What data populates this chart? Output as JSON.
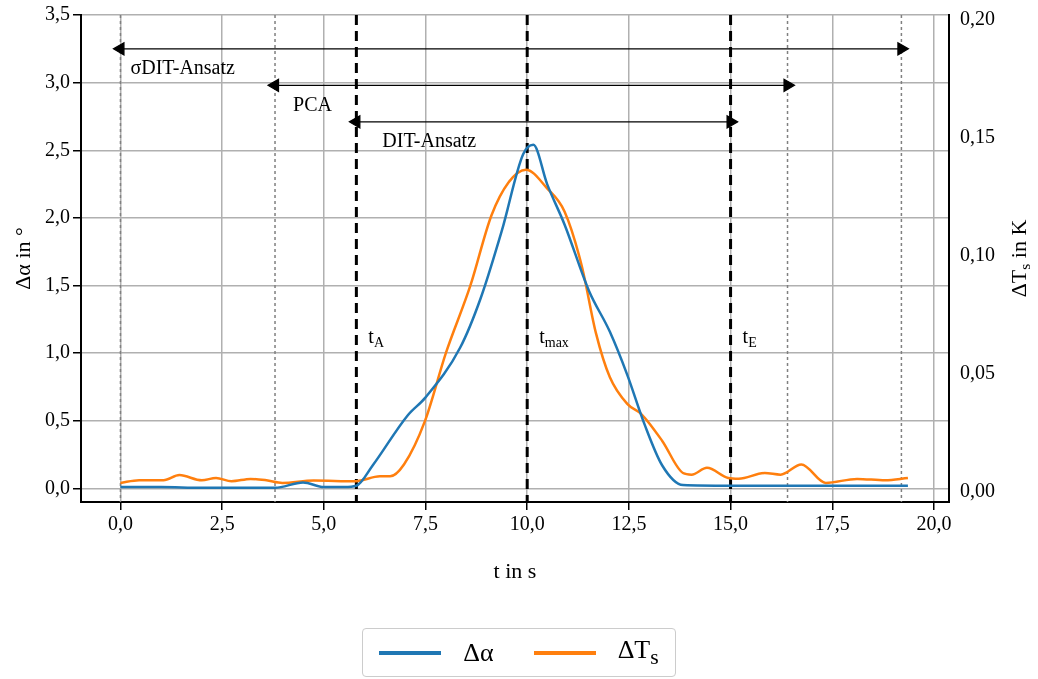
{
  "chart_data": {
    "type": "line",
    "xlabel": "t in s",
    "ylabel": "Δα in °",
    "y2label": "ΔT$_{s}$ in K",
    "xlim": [
      -0.97,
      20.37
    ],
    "ylim": [
      -0.1,
      3.5
    ],
    "y2lim": [
      -0.0045,
      0.202
    ],
    "xticks": [
      {
        "value": 0,
        "label": "0,0"
      },
      {
        "value": 2.5,
        "label": "2,5"
      },
      {
        "value": 5,
        "label": "5,0"
      },
      {
        "value": 7.5,
        "label": "7,5"
      },
      {
        "value": 10,
        "label": "10,0"
      },
      {
        "value": 12.5,
        "label": "12,5"
      },
      {
        "value": 15,
        "label": "15,0"
      },
      {
        "value": 17.5,
        "label": "17,5"
      },
      {
        "value": 20,
        "label": "20,0"
      }
    ],
    "yticks": [
      {
        "value": 0,
        "label": "0,0"
      },
      {
        "value": 0.5,
        "label": "0,5"
      },
      {
        "value": 1,
        "label": "1,0"
      },
      {
        "value": 1.5,
        "label": "1,5"
      },
      {
        "value": 2,
        "label": "2,0"
      },
      {
        "value": 2.5,
        "label": "2,5"
      },
      {
        "value": 3,
        "label": "3,0"
      },
      {
        "value": 3.5,
        "label": "3,5"
      }
    ],
    "y2ticks": [
      {
        "value": 0,
        "label": "0,00"
      },
      {
        "value": 0.05,
        "label": "0,05"
      },
      {
        "value": 0.1,
        "label": "0,10"
      },
      {
        "value": 0.15,
        "label": "0,15"
      },
      {
        "value": 0.2,
        "label": "0,20"
      }
    ],
    "grid": true,
    "legend": "bottom",
    "marker": "none",
    "line_style": "solid",
    "series": [
      {
        "name": "Δα",
        "color": "#1f77b4",
        "x": [
          0,
          1,
          2,
          3,
          3.8,
          4.49,
          5,
          5.5,
          5.8,
          6.2,
          7.06,
          7.49,
          8.35,
          8.86,
          9.38,
          9.9,
          10.15,
          10.49,
          10.92,
          11.52,
          12.03,
          12.46,
          12.89,
          13.32,
          13.83,
          15,
          16,
          17,
          18,
          19.36
        ],
        "values": [
          0.01,
          0.01,
          0.005,
          0.005,
          0.005,
          0.045,
          0.01,
          0.01,
          0.02,
          0.17,
          0.54,
          0.67,
          1.04,
          1.41,
          1.91,
          2.47,
          2.54,
          2.25,
          1.95,
          1.46,
          1.16,
          0.84,
          0.47,
          0.17,
          0.025,
          0.02,
          0.02,
          0.02,
          0.02,
          0.02
        ]
      },
      {
        "name": "ΔT$_{s}$",
        "color": "#ff7f0e",
        "axis": "y2",
        "x": [
          0,
          0.46,
          1.06,
          1.45,
          2,
          2.35,
          2.73,
          3.2,
          3.59,
          3.98,
          4.75,
          5.78,
          6.38,
          6.63,
          6.97,
          7.49,
          8,
          8.6,
          9.12,
          9.54,
          9.97,
          10.49,
          10.92,
          11.34,
          11.69,
          12.03,
          12.46,
          12.8,
          13.32,
          13.83,
          14.04,
          14.42,
          14.94,
          15.2,
          15.84,
          16.23,
          16.74,
          17.34,
          18.11,
          18.8,
          19.36
        ],
        "values": [
          0.0036,
          0.0047,
          0.0047,
          0.0069,
          0.0047,
          0.0057,
          0.0043,
          0.0053,
          0.0047,
          0.0036,
          0.0046,
          0.0043,
          0.0064,
          0.0064,
          0.0114,
          0.03,
          0.0586,
          0.0871,
          0.117,
          0.131,
          0.1364,
          0.1285,
          0.1186,
          0.0957,
          0.0671,
          0.0485,
          0.0371,
          0.0329,
          0.0214,
          0.0078,
          0.0071,
          0.01,
          0.0057,
          0.0054,
          0.0078,
          0.0071,
          0.0114,
          0.0036,
          0.0053,
          0.0047,
          0.0057
        ]
      },
      {
        "type": "line",
        "color": "#000000",
        "marker": "triangle",
        "x": [
          0,
          19.2
        ],
        "values": [
          3.25,
          3.25
        ]
      },
      {
        "type": "line",
        "color": "#000000",
        "marker": "triangle",
        "x": [
          3.8,
          16.4
        ],
        "values": [
          2.98,
          2.98
        ]
      },
      {
        "type": "line",
        "color": "#000000",
        "marker": "triangle",
        "x": [
          5.8,
          15
        ],
        "values": [
          2.71,
          2.71
        ]
      }
    ],
    "ref_lines": [
      {
        "axis": "x",
        "value": 0,
        "color": "#808080",
        "line_style": "dotted"
      },
      {
        "axis": "x",
        "value": 3.8,
        "color": "#808080",
        "line_style": "dotted"
      },
      {
        "axis": "x",
        "value": 5.8,
        "label": "t$_{A}$",
        "color": "#000000",
        "line_style": "dashed"
      },
      {
        "axis": "x",
        "value": 10,
        "label": "t$_{max}$",
        "color": "#000000",
        "line_style": "dashed"
      },
      {
        "axis": "x",
        "value": 15,
        "label": "t$_{E}$",
        "color": "#000000",
        "line_style": "dashed"
      },
      {
        "axis": "x",
        "value": 16.4,
        "color": "#808080",
        "line_style": "dotted"
      },
      {
        "axis": "x",
        "value": 19.2,
        "color": "#808080",
        "line_style": "dotted"
      }
    ],
    "annotations": [
      "σDIT-Ansatz",
      "PCA",
      "DIT-Ansatz"
    ]
  }
}
